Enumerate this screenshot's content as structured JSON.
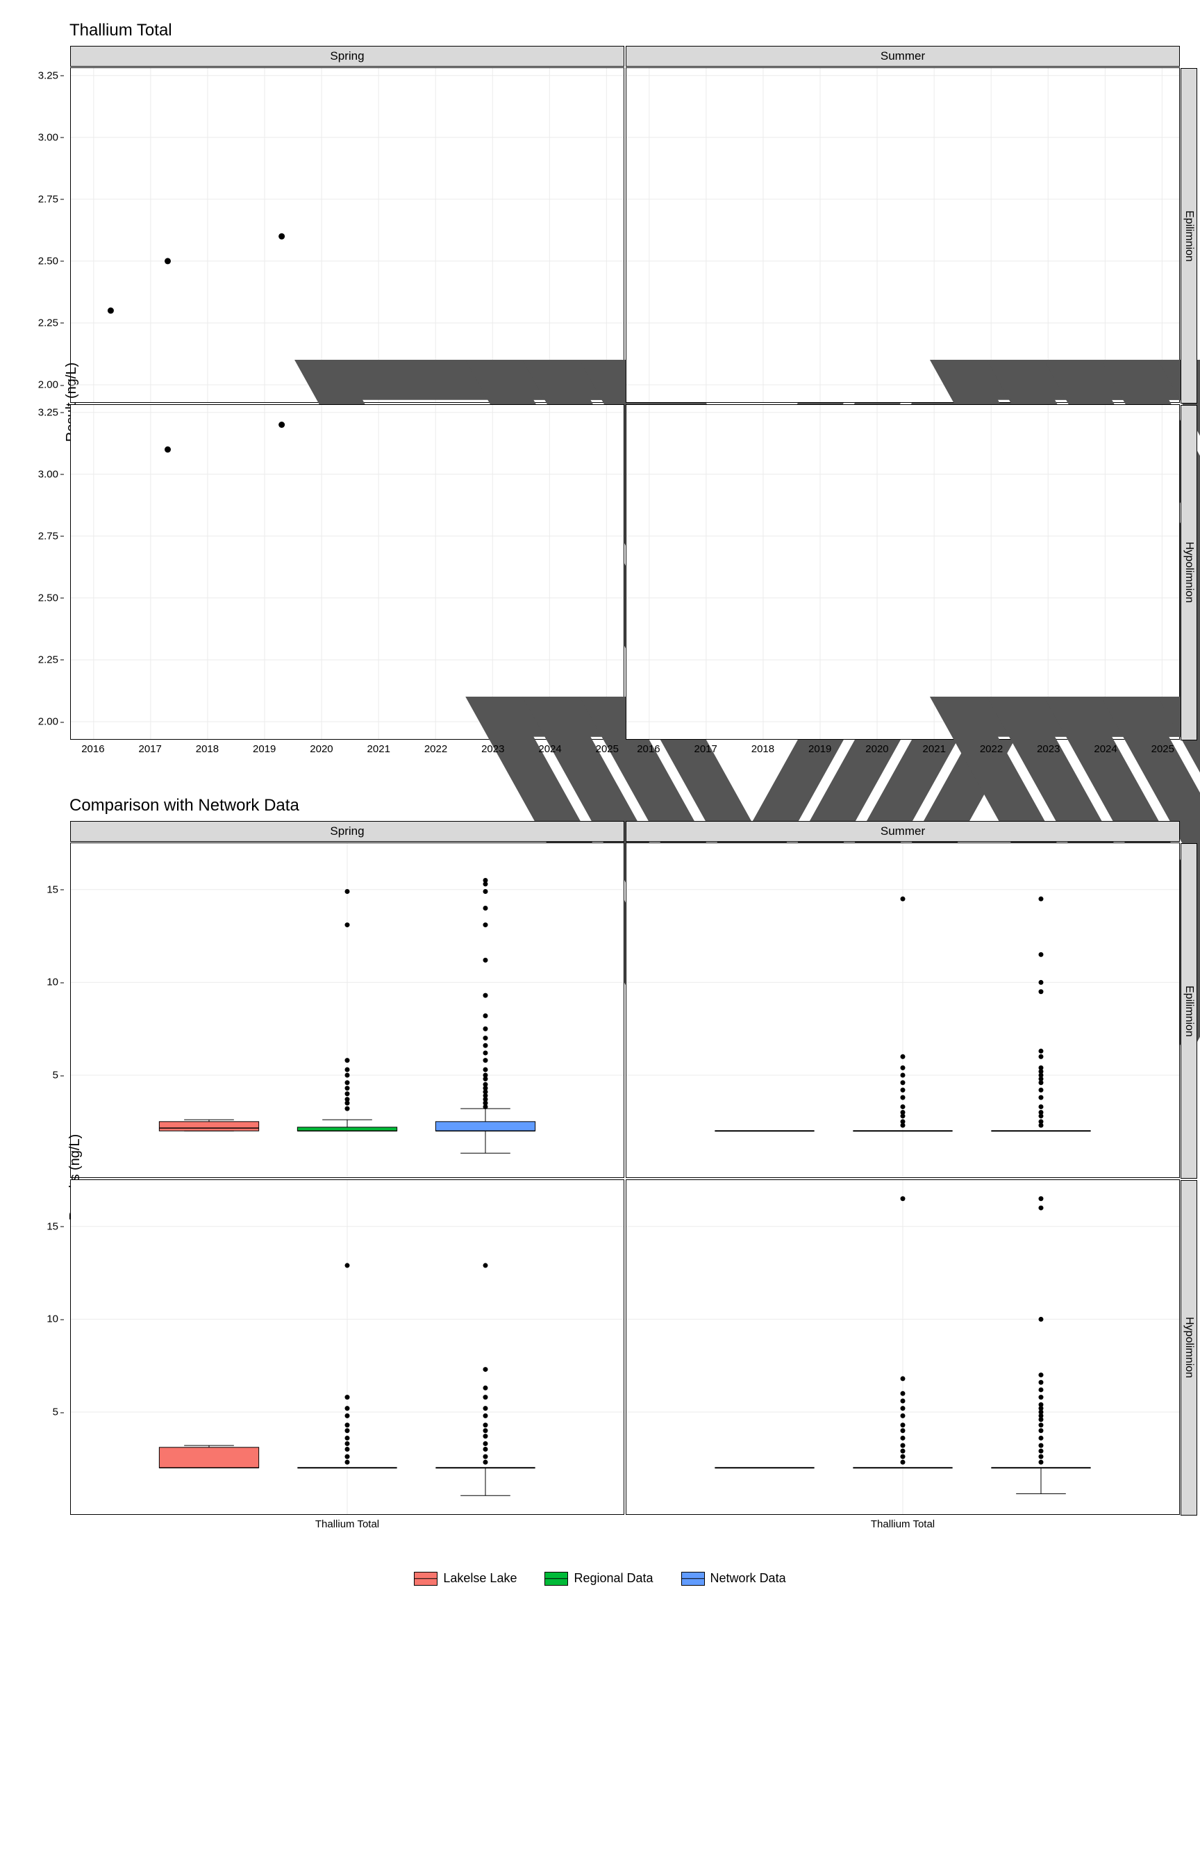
{
  "figure1": {
    "title": "Thallium Total",
    "y_label": "Result (ng/L)",
    "col_facets": [
      "Spring",
      "Summer"
    ],
    "row_facets": [
      "Epilimnion",
      "Hypolimnion"
    ],
    "xlim": [
      2015.6,
      2025.3
    ],
    "ylim": [
      1.93,
      3.28
    ],
    "x_ticks": [
      2016,
      2017,
      2018,
      2019,
      2020,
      2021,
      2022,
      2023,
      2024,
      2025
    ],
    "y_ticks": [
      2.0,
      2.25,
      2.5,
      2.75,
      3.0,
      3.25
    ],
    "grid_color": "#ebebeb",
    "point_color": "#000000",
    "triangle_stroke": "#555555",
    "panels": {
      "spring_epi": {
        "solid": [
          [
            2016.3,
            2.3
          ],
          [
            2017.3,
            2.5
          ],
          [
            2019.3,
            2.6
          ]
        ],
        "open_tri": [
          [
            2018.3,
            2.0
          ],
          [
            2021.3,
            2.0
          ],
          [
            2022.3,
            2.0
          ],
          [
            2023.3,
            2.0
          ],
          [
            2024.3,
            2.0
          ]
        ]
      },
      "summer_epi": {
        "solid": [],
        "open_tri": [
          [
            2019.7,
            2.0
          ],
          [
            2020.7,
            2.0
          ],
          [
            2021.7,
            2.0
          ],
          [
            2022.7,
            2.0
          ],
          [
            2023.7,
            2.0
          ],
          [
            2024.7,
            2.0
          ]
        ]
      },
      "spring_hypo": {
        "solid": [
          [
            2017.3,
            3.1
          ],
          [
            2019.3,
            3.2
          ]
        ],
        "open_tri": [
          [
            2021.3,
            2.0
          ],
          [
            2022.3,
            2.0
          ],
          [
            2023.3,
            2.0
          ],
          [
            2024.3,
            2.0
          ]
        ]
      },
      "summer_hypo": {
        "solid": [],
        "open_tri": [
          [
            2019.7,
            2.0
          ],
          [
            2020.7,
            2.0
          ],
          [
            2021.7,
            2.0
          ],
          [
            2022.7,
            2.0
          ],
          [
            2023.7,
            2.0
          ],
          [
            2024.7,
            2.0
          ]
        ]
      }
    }
  },
  "figure2": {
    "title": "Comparison with Network Data",
    "y_label": "Results (ng/L)",
    "col_facets": [
      "Spring",
      "Summer"
    ],
    "row_facets": [
      "Epilimnion",
      "Hypolimnion"
    ],
    "x_category": "Thallium Total",
    "ylim": [
      -0.5,
      17.5
    ],
    "y_ticks": [
      5,
      10,
      15
    ],
    "grid_color": "#ebebeb",
    "groups": [
      "Lakelse Lake",
      "Regional Data",
      "Network Data"
    ],
    "group_colors": {
      "Lakelse Lake": "#f8766d",
      "Regional Data": "#00ba38",
      "Network Data": "#619cff"
    },
    "box_fill_opacity": 1.0,
    "panels": {
      "spring_epi": {
        "boxes": [
          {
            "g": "Lakelse Lake",
            "min": 2.0,
            "q1": 2.0,
            "med": 2.15,
            "q3": 2.5,
            "max": 2.6,
            "outliers": []
          },
          {
            "g": "Regional Data",
            "min": 2.0,
            "q1": 2.0,
            "med": 2.0,
            "q3": 2.2,
            "max": 2.6,
            "outliers": [
              3.2,
              3.5,
              3.7,
              4.0,
              4.3,
              4.6,
              5.0,
              5.3,
              5.8,
              13.1,
              14.9
            ]
          },
          {
            "g": "Network Data",
            "min": 0.8,
            "q1": 2.0,
            "med": 2.0,
            "q3": 2.5,
            "max": 3.2,
            "outliers": [
              3.3,
              3.5,
              3.7,
              3.9,
              4.1,
              4.3,
              4.5,
              4.8,
              5.0,
              5.3,
              5.8,
              6.2,
              6.6,
              7.0,
              7.5,
              8.2,
              9.3,
              11.2,
              13.1,
              14.0,
              14.9,
              15.3,
              15.5
            ]
          }
        ]
      },
      "summer_epi": {
        "boxes": [
          {
            "g": "Lakelse Lake",
            "min": 2.0,
            "q1": 2.0,
            "med": 2.0,
            "q3": 2.0,
            "max": 2.0,
            "outliers": []
          },
          {
            "g": "Regional Data",
            "min": 2.0,
            "q1": 2.0,
            "med": 2.0,
            "q3": 2.0,
            "max": 2.0,
            "outliers": [
              2.3,
              2.5,
              2.8,
              3.0,
              3.3,
              3.8,
              4.2,
              4.6,
              5.0,
              5.4,
              6.0,
              14.5
            ]
          },
          {
            "g": "Network Data",
            "min": 2.0,
            "q1": 2.0,
            "med": 2.0,
            "q3": 2.0,
            "max": 2.0,
            "outliers": [
              2.3,
              2.5,
              2.8,
              3.0,
              3.3,
              3.8,
              4.2,
              4.6,
              4.8,
              5.0,
              5.2,
              5.4,
              6.0,
              6.3,
              9.5,
              10.0,
              11.5,
              14.5
            ]
          }
        ]
      },
      "spring_hypo": {
        "boxes": [
          {
            "g": "Lakelse Lake",
            "min": 2.0,
            "q1": 2.0,
            "med": 2.0,
            "q3": 3.1,
            "max": 3.2,
            "outliers": []
          },
          {
            "g": "Regional Data",
            "min": 2.0,
            "q1": 2.0,
            "med": 2.0,
            "q3": 2.0,
            "max": 2.0,
            "outliers": [
              2.3,
              2.6,
              3.0,
              3.3,
              3.6,
              4.0,
              4.3,
              4.8,
              5.2,
              5.8,
              12.9
            ]
          },
          {
            "g": "Network Data",
            "min": 0.5,
            "q1": 2.0,
            "med": 2.0,
            "q3": 2.0,
            "max": 2.0,
            "outliers": [
              2.3,
              2.6,
              3.0,
              3.3,
              3.7,
              4.0,
              4.3,
              4.8,
              5.2,
              5.8,
              6.3,
              7.3,
              12.9
            ]
          }
        ]
      },
      "summer_hypo": {
        "boxes": [
          {
            "g": "Lakelse Lake",
            "min": 2.0,
            "q1": 2.0,
            "med": 2.0,
            "q3": 2.0,
            "max": 2.0,
            "outliers": []
          },
          {
            "g": "Regional Data",
            "min": 2.0,
            "q1": 2.0,
            "med": 2.0,
            "q3": 2.0,
            "max": 2.0,
            "outliers": [
              2.3,
              2.6,
              2.9,
              3.2,
              3.6,
              4.0,
              4.3,
              4.8,
              5.2,
              5.6,
              6.0,
              6.8,
              16.5
            ]
          },
          {
            "g": "Network Data",
            "min": 0.6,
            "q1": 2.0,
            "med": 2.0,
            "q3": 2.0,
            "max": 2.0,
            "outliers": [
              2.3,
              2.6,
              2.9,
              3.2,
              3.6,
              4.0,
              4.3,
              4.6,
              4.8,
              5.0,
              5.2,
              5.4,
              5.8,
              6.2,
              6.6,
              7.0,
              10.0,
              16.0,
              16.5
            ]
          }
        ]
      }
    }
  },
  "legend": {
    "items": [
      {
        "label": "Lakelse Lake",
        "color": "#f8766d"
      },
      {
        "label": "Regional Data",
        "color": "#00ba38"
      },
      {
        "label": "Network Data",
        "color": "#619cff"
      }
    ]
  }
}
